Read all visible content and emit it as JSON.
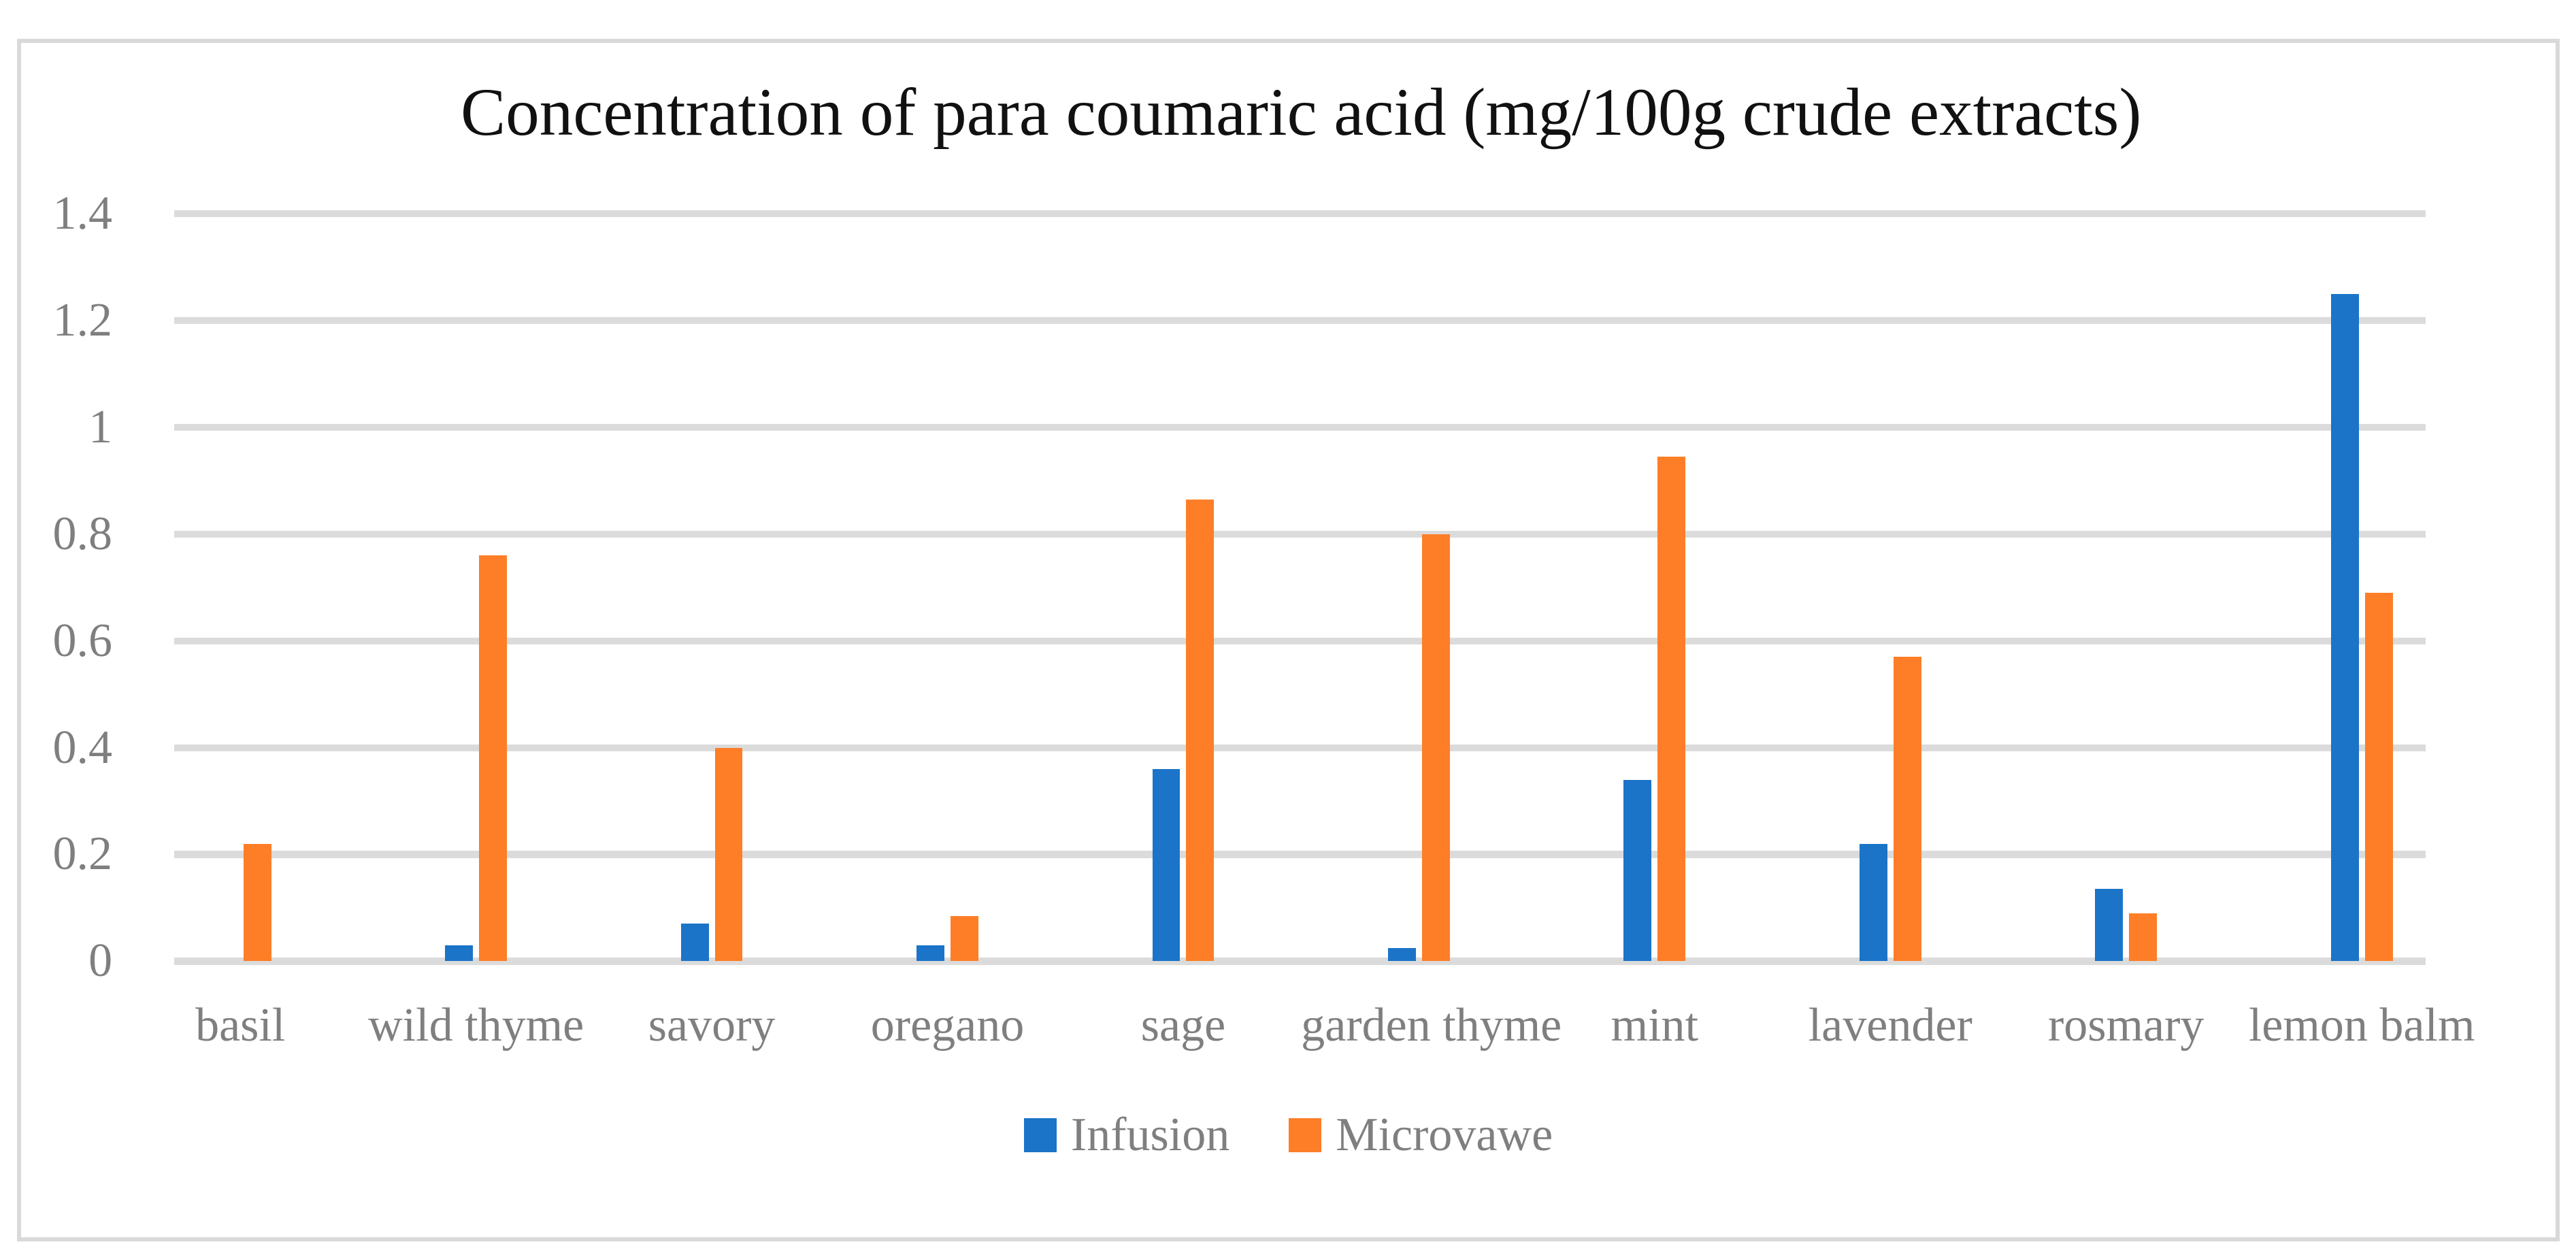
{
  "figure": {
    "background": "#FFFFFF",
    "border_color": "#D9D9D9"
  },
  "chart_data": {
    "type": "bar",
    "title": "Concentration of para coumaric acid (mg/100g crude extracts)",
    "categories": [
      "basil",
      "wild thyme",
      "savory",
      "oregano",
      "sage",
      "garden thyme",
      "mint",
      "lavender",
      "rosmary",
      "lemon balm"
    ],
    "series": [
      {
        "name": "Infusion",
        "color": "#1B74C8",
        "values": [
          0,
          0.03,
          0.07,
          0.03,
          0.36,
          0.025,
          0.34,
          0.22,
          0.135,
          1.25
        ]
      },
      {
        "name": "Microvawe",
        "color": "#FD7E27",
        "values": [
          0.22,
          0.76,
          0.4,
          0.085,
          0.865,
          0.8,
          0.945,
          0.57,
          0.09,
          0.69
        ]
      }
    ],
    "xlabel": "",
    "ylabel": "",
    "ylim": [
      0,
      1.4
    ],
    "yticks": [
      0,
      0.2,
      0.4,
      0.6,
      0.8,
      1,
      1.2,
      1.4
    ],
    "ytick_labels": [
      "0",
      "0.2",
      "0.4",
      "0.6",
      "0.8",
      "1",
      "1.2",
      "1.4"
    ],
    "grid": "horizontal",
    "gridline_color": "#DBDBDB",
    "axis_label_color": "#7F7F7F",
    "title_color": "#111111",
    "legend_position": "bottom",
    "legend": [
      "Infusion",
      "Microvawe"
    ]
  }
}
